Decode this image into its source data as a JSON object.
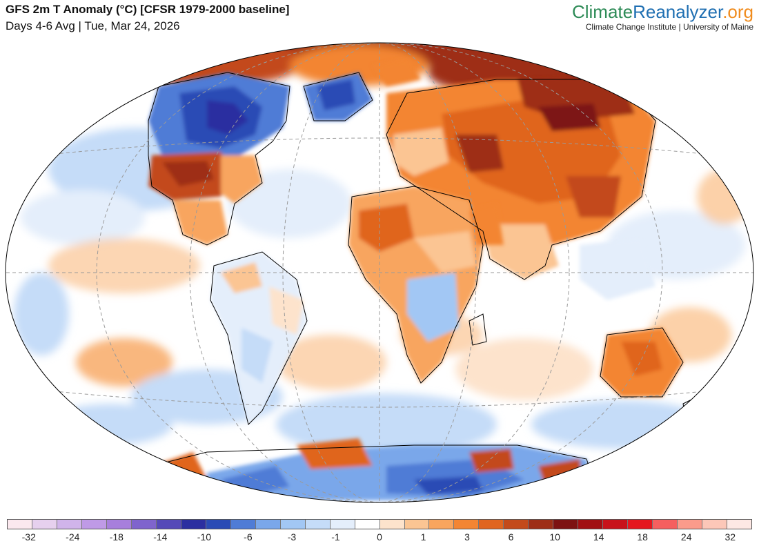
{
  "header": {
    "title": "GFS 2m T Anomaly (°C) [CFSR 1979-2000 baseline]",
    "subtitle": "Days 4-6 Avg | Tue, Mar 24, 2026"
  },
  "brand": {
    "part1": "Climate",
    "part2": "Reanalyzer",
    "part3": ".org",
    "subtitle": "Climate Change Institute | University of Maine"
  },
  "colorbar": {
    "colors": [
      "#fbe8ee",
      "#e6d0ee",
      "#d0b4ea",
      "#bf9ae6",
      "#a77fdc",
      "#7f64cd",
      "#5549b8",
      "#2b2fa0",
      "#2a4bb5",
      "#4f7cd6",
      "#7aa7ea",
      "#a2c7f4",
      "#c5dcf8",
      "#e4eefb",
      "#ffffff",
      "#fde3cc",
      "#fbc593",
      "#f8a55e",
      "#f38533",
      "#e0651f",
      "#c34a1a",
      "#9e2e16",
      "#7d1212",
      "#a10f12",
      "#c8121a",
      "#e5161e",
      "#f55f5f",
      "#fb9b8b",
      "#fcc7b8",
      "#fde8e4"
    ],
    "ticks": [
      {
        "label": "-32",
        "index": 1
      },
      {
        "label": "-24",
        "index": 3
      },
      {
        "label": "-18",
        "index": 5
      },
      {
        "label": "-14",
        "index": 7
      },
      {
        "label": "-10",
        "index": 9
      },
      {
        "label": "-6",
        "index": 11
      },
      {
        "label": "-3",
        "index": 13
      },
      {
        "label": "-1",
        "index": 15
      },
      {
        "label": "0",
        "index": 17
      },
      {
        "label": "1",
        "index": 19
      },
      {
        "label": "3",
        "index": 21
      },
      {
        "label": "6",
        "index": 23
      },
      {
        "label": "10",
        "index": 25
      },
      {
        "label": "14",
        "index": 27
      },
      {
        "label": "18",
        "index": 29
      },
      {
        "label": "24",
        "index": 31
      },
      {
        "label": "32",
        "index": 33
      }
    ]
  },
  "map": {
    "background": "#ffffff",
    "ocean_tint": "#dfeaf8",
    "line_color": "#000000",
    "grid_color": "#9a9a9a"
  }
}
